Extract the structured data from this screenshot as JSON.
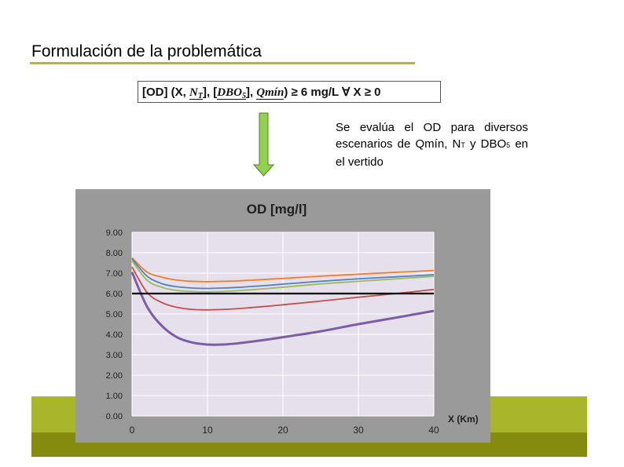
{
  "slide": {
    "title": "Formulación de la problemática",
    "formula": {
      "part1": "[OD] (X, ",
      "nt": "N",
      "nt_sub": "T",
      "part2": "], [",
      "dbo": "DBO",
      "dbo_sub": "5",
      "part3": "], ",
      "qmin": "Qmín",
      "part4": ") ≥ 6 mg/L ∀ X ≥ 0"
    },
    "note": {
      "line1": "Se evalúa el OD para diversos escenarios de Qmín, N",
      "sub_t": "T",
      "line2": " y DBO",
      "sub_5": "5",
      "line3": " en el vertido"
    }
  },
  "colors": {
    "accent_rule": "#b5bd1a",
    "arrow_fill": "#92d050",
    "band_light": "#a9b52a",
    "band_dark": "#848b0f",
    "chart_bg": "#9a9a9a",
    "plot_bg": "#e6e0ec"
  },
  "chart_data": {
    "type": "line",
    "title": "OD [mg/l]",
    "xlabel": "X (Km)",
    "ylabel": "",
    "xlim": [
      0,
      40
    ],
    "ylim": [
      0,
      9
    ],
    "x_ticks": [
      "0",
      "10",
      "20",
      "30",
      "40"
    ],
    "y_ticks": [
      "0.00",
      "1.00",
      "2.00",
      "3.00",
      "4.00",
      "5.00",
      "6.00",
      "7.00",
      "8.00",
      "9.00"
    ],
    "grid": true,
    "legend": "none",
    "series": [
      {
        "color": "#f07d2c",
        "x": [
          0,
          2,
          4,
          6,
          8,
          10,
          12,
          14,
          16,
          18,
          20,
          25,
          30,
          35,
          40
        ],
        "values": [
          7.75,
          7.05,
          6.8,
          6.66,
          6.6,
          6.58,
          6.6,
          6.62,
          6.66,
          6.7,
          6.74,
          6.85,
          6.95,
          7.04,
          7.13
        ]
      },
      {
        "color": "#4f81bd",
        "x": [
          0,
          2,
          4,
          6,
          8,
          10,
          12,
          14,
          16,
          18,
          20,
          25,
          30,
          35,
          40
        ],
        "values": [
          7.7,
          6.85,
          6.48,
          6.33,
          6.27,
          6.25,
          6.27,
          6.3,
          6.35,
          6.4,
          6.46,
          6.6,
          6.72,
          6.82,
          6.92
        ]
      },
      {
        "color": "#9bbb59",
        "x": [
          0,
          2,
          4,
          6,
          8,
          10,
          12,
          14,
          16,
          18,
          20,
          25,
          30,
          35,
          40
        ],
        "values": [
          7.6,
          6.65,
          6.3,
          6.15,
          6.1,
          6.08,
          6.1,
          6.14,
          6.19,
          6.25,
          6.31,
          6.47,
          6.6,
          6.72,
          6.84
        ]
      },
      {
        "color": "#c0504d",
        "x": [
          0,
          2,
          4,
          6,
          8,
          10,
          12,
          14,
          16,
          18,
          20,
          25,
          30,
          35,
          40
        ],
        "values": [
          7.3,
          6.05,
          5.55,
          5.32,
          5.22,
          5.2,
          5.22,
          5.26,
          5.32,
          5.38,
          5.45,
          5.63,
          5.82,
          6.0,
          6.2
        ]
      },
      {
        "color": "#7d5ca6",
        "x": [
          0,
          2,
          4,
          6,
          8,
          10,
          12,
          14,
          16,
          18,
          20,
          25,
          30,
          35,
          40
        ],
        "values": [
          7.05,
          5.35,
          4.4,
          3.85,
          3.6,
          3.5,
          3.5,
          3.56,
          3.65,
          3.75,
          3.86,
          4.15,
          4.5,
          4.82,
          5.15
        ]
      },
      {
        "color": "#000000",
        "x": [
          0,
          40
        ],
        "values": [
          6.0,
          6.0
        ]
      }
    ]
  }
}
